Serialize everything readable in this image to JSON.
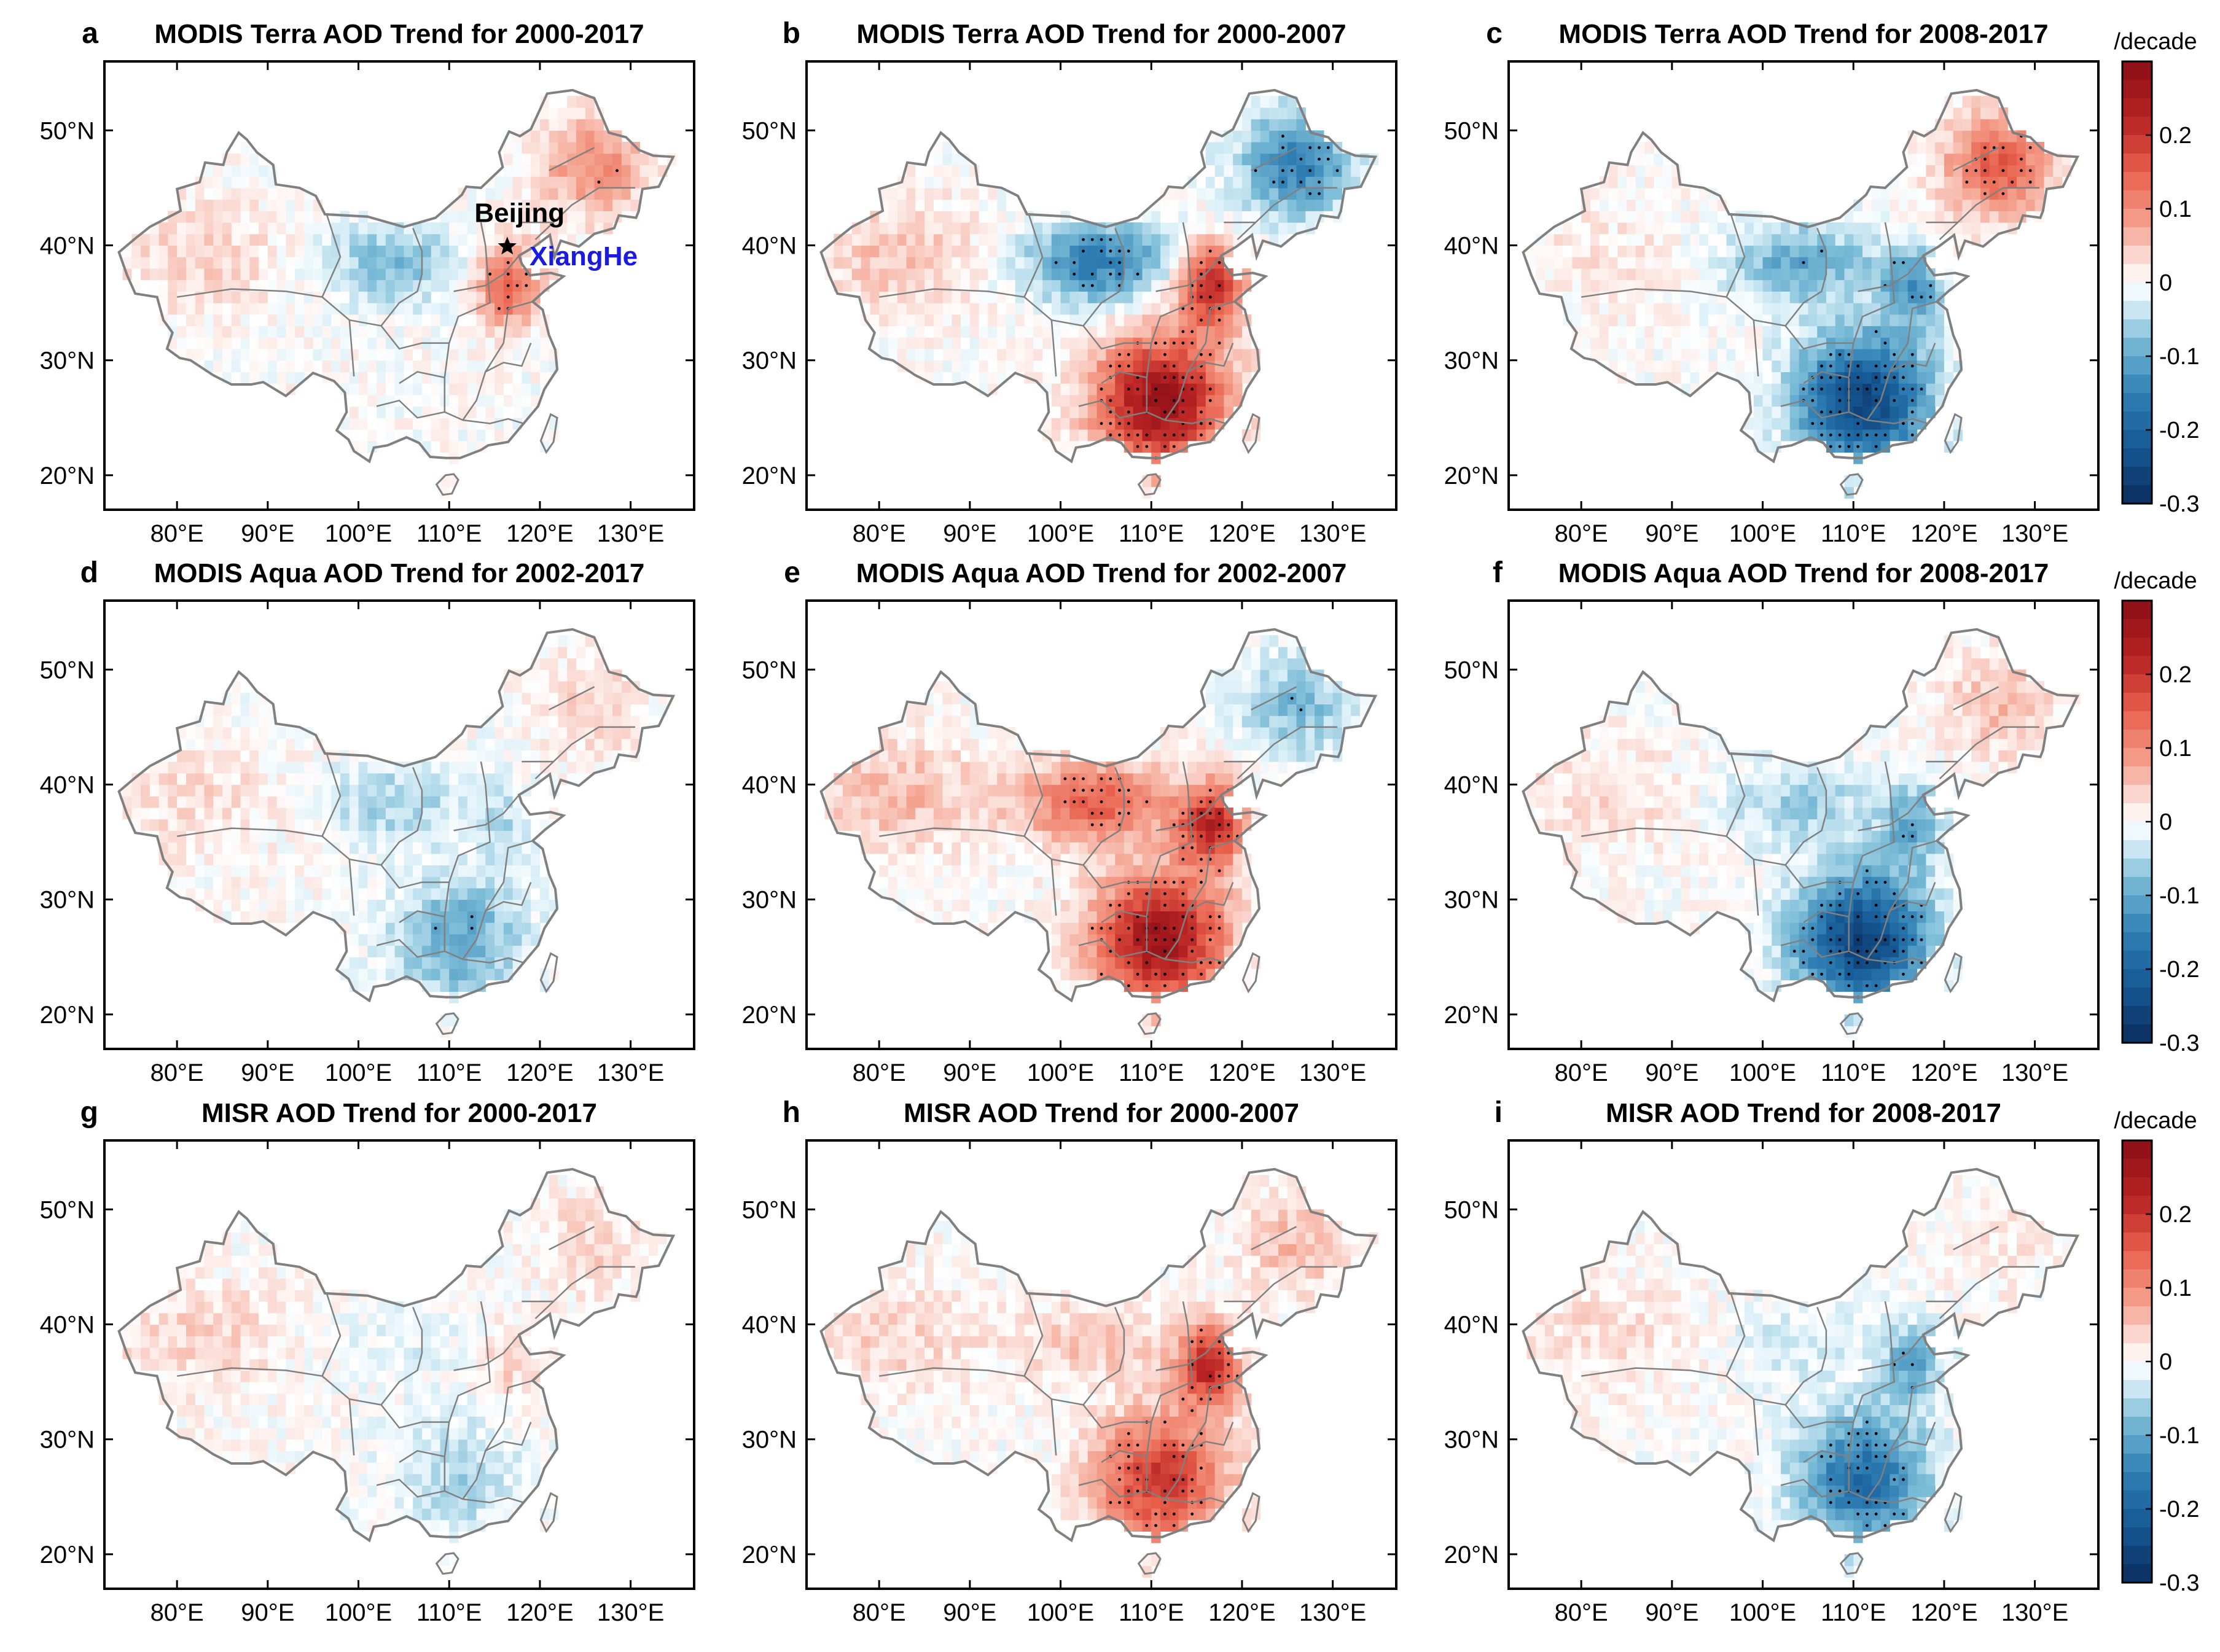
{
  "figure": {
    "description_free": true
  },
  "colors": {
    "strong_neg": "#0b2d5e",
    "mid_neg": "#2f7fb4",
    "weak_neg": "#d8eef7",
    "zero": "#ffffff",
    "weak_pos": "#fbe0da",
    "mid_pos": "#e8604c",
    "strong_pos": "#8a0f16",
    "border": "#808080",
    "frame": "#000000"
  },
  "chart_data": [
    {
      "type": "heatmap",
      "label": "a",
      "title": "MODIS Terra AOD Trend for 2000-2017",
      "period": "2000-2017",
      "xlabel": "",
      "ylabel": "",
      "xlim": [
        72,
        137
      ],
      "ylim": [
        17,
        56
      ],
      "xticks": [
        "80°E",
        "90°E",
        "100°E",
        "110°E",
        "120°E",
        "130°E"
      ],
      "xtick_values": [
        80,
        90,
        100,
        110,
        120,
        130
      ],
      "yticks": [
        "20°N",
        "30°N",
        "40°N",
        "50°N"
      ],
      "ytick_values": [
        20,
        30,
        40,
        50
      ],
      "pattern": {
        "south": 0.0,
        "north_china_plain": 0.15,
        "northeast": 0.1,
        "west": 0.04,
        "loess": -0.08
      },
      "annotations": [
        {
          "text": "Beijing",
          "lon": 116.4,
          "lat": 39.9,
          "marker": "star"
        },
        {
          "text": "XiangHe",
          "lon": 116.96,
          "lat": 39.75
        }
      ]
    },
    {
      "type": "heatmap",
      "label": "b",
      "title": "MODIS Terra AOD Trend for 2000-2007",
      "period": "2000-2007",
      "xlim": [
        72,
        137
      ],
      "ylim": [
        17,
        56
      ],
      "xticks": [
        "80°E",
        "90°E",
        "100°E",
        "110°E",
        "120°E",
        "130°E"
      ],
      "xtick_values": [
        80,
        90,
        100,
        110,
        120,
        130
      ],
      "yticks": [
        "20°N",
        "30°N",
        "40°N",
        "50°N"
      ],
      "ytick_values": [
        20,
        30,
        40,
        50
      ],
      "pattern": {
        "south": 0.28,
        "north_china_plain": 0.22,
        "northeast": -0.15,
        "west": 0.05,
        "loess": -0.15
      }
    },
    {
      "type": "heatmap",
      "label": "c",
      "title": "MODIS Terra AOD Trend for 2008-2017",
      "period": "2008-2017",
      "xlim": [
        72,
        137
      ],
      "ylim": [
        17,
        56
      ],
      "xticks": [
        "80°E",
        "90°E",
        "100°E",
        "110°E",
        "120°E",
        "130°E"
      ],
      "xtick_values": [
        80,
        90,
        100,
        110,
        120,
        130
      ],
      "yticks": [
        "20°N",
        "30°N",
        "40°N",
        "50°N"
      ],
      "ytick_values": [
        20,
        30,
        40,
        50
      ],
      "pattern": {
        "south": -0.26,
        "north_china_plain": -0.12,
        "northeast": 0.15,
        "west": 0.02,
        "loess": -0.1
      }
    },
    {
      "type": "heatmap",
      "label": "d",
      "title": "MODIS Aqua AOD Trend for 2002-2017",
      "period": "2002-2017",
      "xlim": [
        72,
        137
      ],
      "ylim": [
        17,
        56
      ],
      "xticks": [
        "80°E",
        "90°E",
        "100°E",
        "110°E",
        "120°E",
        "130°E"
      ],
      "xtick_values": [
        80,
        90,
        100,
        110,
        120,
        130
      ],
      "yticks": [
        "20°N",
        "30°N",
        "40°N",
        "50°N"
      ],
      "ytick_values": [
        20,
        30,
        40,
        50
      ],
      "pattern": {
        "south": -0.1,
        "north_china_plain": -0.04,
        "northeast": 0.04,
        "west": 0.03,
        "loess": -0.06
      }
    },
    {
      "type": "heatmap",
      "label": "e",
      "title": "MODIS Aqua AOD Trend for 2002-2007",
      "period": "2002-2007",
      "xlim": [
        72,
        137
      ],
      "ylim": [
        17,
        56
      ],
      "xticks": [
        "80°E",
        "90°E",
        "100°E",
        "110°E",
        "120°E",
        "130°E"
      ],
      "xtick_values": [
        80,
        90,
        100,
        110,
        120,
        130
      ],
      "yticks": [
        "20°N",
        "30°N",
        "40°N",
        "50°N"
      ],
      "ytick_values": [
        20,
        30,
        40,
        50
      ],
      "pattern": {
        "south": 0.27,
        "north_china_plain": 0.22,
        "northeast": -0.08,
        "west": 0.06,
        "loess": 0.15
      }
    },
    {
      "type": "heatmap",
      "label": "f",
      "title": "MODIS Aqua AOD Trend for 2008-2017",
      "period": "2008-2017",
      "xlim": [
        72,
        137
      ],
      "ylim": [
        17,
        56
      ],
      "xticks": [
        "80°E",
        "90°E",
        "100°E",
        "110°E",
        "120°E",
        "130°E"
      ],
      "xtick_values": [
        80,
        90,
        100,
        110,
        120,
        130
      ],
      "yticks": [
        "20°N",
        "30°N",
        "40°N",
        "50°N"
      ],
      "ytick_values": [
        20,
        30,
        40,
        50
      ],
      "pattern": {
        "south": -0.27,
        "north_china_plain": -0.1,
        "northeast": 0.06,
        "west": 0.03,
        "loess": -0.06
      }
    },
    {
      "type": "heatmap",
      "label": "g",
      "title": "MISR AOD Trend for 2000-2017",
      "period": "2000-2017",
      "xlim": [
        72,
        137
      ],
      "ylim": [
        17,
        56
      ],
      "xticks": [
        "80°E",
        "90°E",
        "100°E",
        "110°E",
        "120°E",
        "130°E"
      ],
      "xtick_values": [
        80,
        90,
        100,
        110,
        120,
        130
      ],
      "yticks": [
        "20°N",
        "30°N",
        "40°N",
        "50°N"
      ],
      "ytick_values": [
        20,
        30,
        40,
        50
      ],
      "pattern": {
        "south": -0.05,
        "north_china_plain": 0.04,
        "northeast": 0.04,
        "west": 0.04,
        "loess": -0.02
      }
    },
    {
      "type": "heatmap",
      "label": "h",
      "title": "MISR AOD Trend for 2000-2007",
      "period": "2000-2007",
      "xlim": [
        72,
        137
      ],
      "ylim": [
        17,
        56
      ],
      "xticks": [
        "80°E",
        "90°E",
        "100°E",
        "110°E",
        "120°E",
        "130°E"
      ],
      "xtick_values": [
        80,
        90,
        100,
        110,
        120,
        130
      ],
      "yticks": [
        "20°N",
        "30°N",
        "40°N",
        "50°N"
      ],
      "ytick_values": [
        20,
        30,
        40,
        50
      ],
      "pattern": {
        "south": 0.2,
        "north_china_plain": 0.22,
        "northeast": 0.06,
        "west": 0.04,
        "loess": 0.05
      }
    },
    {
      "type": "heatmap",
      "label": "i",
      "title": "MISR AOD Trend for 2008-2017",
      "period": "2008-2017",
      "xlim": [
        72,
        137
      ],
      "ylim": [
        17,
        56
      ],
      "xticks": [
        "80°E",
        "90°E",
        "100°E",
        "110°E",
        "120°E",
        "130°E"
      ],
      "xtick_values": [
        80,
        90,
        100,
        110,
        120,
        130
      ],
      "yticks": [
        "20°N",
        "30°N",
        "40°N",
        "50°N"
      ],
      "ytick_values": [
        20,
        30,
        40,
        50
      ],
      "pattern": {
        "south": -0.18,
        "north_china_plain": -0.1,
        "northeast": 0.02,
        "west": 0.03,
        "loess": -0.03
      }
    }
  ],
  "colorbars": [
    {
      "row": 0,
      "unit": "/decade",
      "range": [
        -0.3,
        0.3
      ],
      "ticks": [
        "0.2",
        "0.1",
        "0",
        "-0.1",
        "-0.2",
        "-0.3"
      ],
      "tick_values": [
        0.2,
        0.1,
        0,
        -0.1,
        -0.2,
        -0.3
      ]
    },
    {
      "row": 1,
      "unit": "/decade",
      "range": [
        -0.3,
        0.3
      ],
      "ticks": [
        "0.2",
        "0.1",
        "0",
        "-0.1",
        "-0.2",
        "-0.3"
      ],
      "tick_values": [
        0.2,
        0.1,
        0,
        -0.1,
        -0.2,
        -0.3
      ]
    },
    {
      "row": 2,
      "unit": "/decade",
      "range": [
        -0.3,
        0.3
      ],
      "ticks": [
        "0.2",
        "0.1",
        "0",
        "-0.1",
        "-0.2",
        "-0.3"
      ],
      "tick_values": [
        0.2,
        0.1,
        0,
        -0.1,
        -0.2,
        -0.3
      ]
    }
  ]
}
